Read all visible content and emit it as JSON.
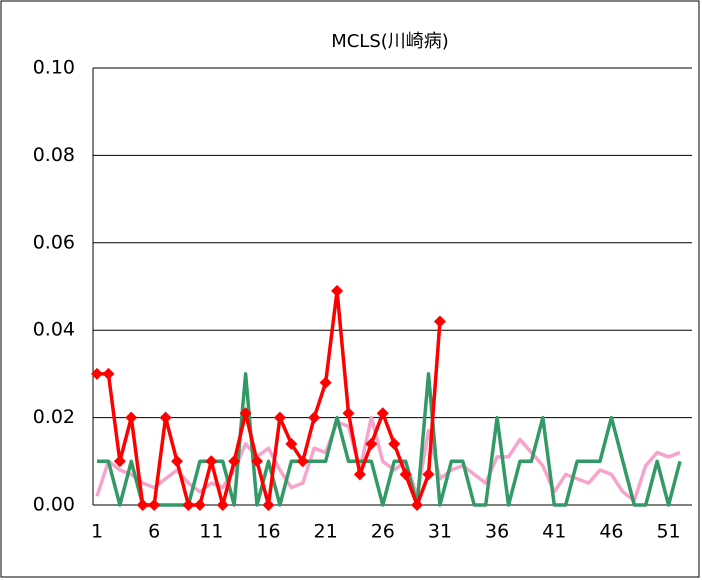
{
  "chart_data": {
    "type": "line",
    "title": "MCLS(川崎病)",
    "categories": [
      1,
      null,
      null,
      null,
      null,
      6,
      null,
      null,
      null,
      null,
      11,
      null,
      null,
      null,
      null,
      16,
      null,
      null,
      null,
      null,
      21,
      null,
      null,
      null,
      null,
      26,
      null,
      null,
      null,
      null,
      31,
      null,
      null,
      null,
      null,
      36,
      null,
      null,
      null,
      null,
      41,
      null,
      null,
      null,
      null,
      46,
      null,
      null,
      null,
      null,
      51,
      null
    ],
    "series": [
      {
        "color": "#f7a3cc",
        "marker": "none",
        "values": [
          0.002,
          0.01,
          0.008,
          0.007,
          0.005,
          0.004,
          0.006,
          0.008,
          0.005,
          0.003,
          0.005,
          0.004,
          0.008,
          0.014,
          0.011,
          0.013,
          0.008,
          0.004,
          0.005,
          0.013,
          0.012,
          0.019,
          0.018,
          0.008,
          0.02,
          0.01,
          0.008,
          0.01,
          0.002,
          0.017,
          0.006,
          0.008,
          0.009,
          0.007,
          0.005,
          0.011,
          0.011,
          0.015,
          0.012,
          0.009,
          0.003,
          0.007,
          0.006,
          0.005,
          0.008,
          0.007,
          0.003,
          0.001,
          0.009,
          0.012,
          0.011,
          0.012
        ]
      },
      {
        "color": "#339966",
        "marker": "none",
        "values": [
          0.01,
          0.01,
          0,
          0.01,
          0,
          0,
          0,
          0,
          0,
          0.01,
          0.01,
          0.01,
          0,
          0.03,
          0,
          0.01,
          0,
          0.01,
          0.01,
          0.01,
          0.01,
          0.02,
          0.01,
          0.01,
          0.01,
          0,
          0.01,
          0.01,
          0,
          0.03,
          0,
          0.01,
          0.01,
          0,
          0,
          0.02,
          0,
          0.01,
          0.01,
          0.02,
          0,
          0,
          0.01,
          0.01,
          0.01,
          0.02,
          0.01,
          0,
          0,
          0.01,
          0,
          0.01
        ]
      },
      {
        "color": "#ff0000",
        "marker": "diamond",
        "values": [
          0.03,
          0.03,
          0.01,
          0.02,
          0.0,
          0.0,
          0.02,
          0.01,
          0.0,
          0.0,
          0.01,
          0.0,
          0.01,
          0.021,
          0.01,
          0.0,
          0.02,
          0.014,
          0.01,
          0.02,
          0.028,
          0.049,
          0.021,
          0.007,
          0.014,
          0.021,
          0.014,
          0.007,
          0.0,
          0.007,
          0.042,
          null,
          null,
          null,
          null,
          null,
          null,
          null,
          null,
          null,
          null,
          null,
          null,
          null,
          null,
          null,
          null,
          null,
          null,
          null,
          null,
          null
        ]
      }
    ],
    "ylim": [
      0,
      0.1
    ],
    "yticks": [
      {
        "value": 0,
        "label": "0.00"
      },
      {
        "value": 0.02,
        "label": "0.02"
      },
      {
        "value": 0.04,
        "label": "0.04"
      },
      {
        "value": 0.06,
        "label": "0.06"
      },
      {
        "value": 0.08,
        "label": "0.08"
      },
      {
        "value": 0.1,
        "label": "0.10"
      }
    ],
    "grid": true
  }
}
